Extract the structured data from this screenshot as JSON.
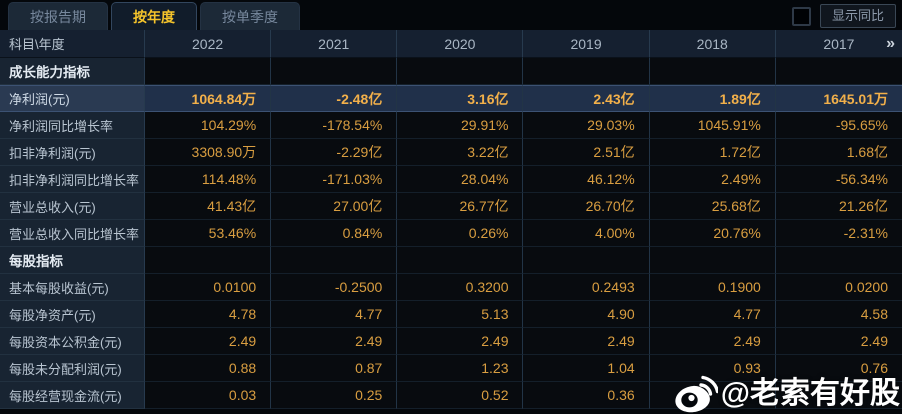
{
  "tab_bar": {
    "tabs": [
      {
        "label": "按报告期",
        "active": false
      },
      {
        "label": "按年度",
        "active": true
      },
      {
        "label": "按单季度",
        "active": false
      }
    ]
  },
  "controls": {
    "checkbox_checked": false,
    "show_yoy_label": "显示同比"
  },
  "table": {
    "corner_label": "科目\\年度",
    "years": [
      "2022",
      "2021",
      "2020",
      "2019",
      "2018",
      "2017"
    ],
    "more_label": "»",
    "rows": [
      {
        "label": "成长能力指标",
        "type": "section",
        "values": [
          "",
          "",
          "",
          "",
          "",
          ""
        ]
      },
      {
        "label": "净利润(元)",
        "type": "highlight",
        "values": [
          "1064.84万",
          "-2.48亿",
          "3.16亿",
          "2.43亿",
          "1.89亿",
          "1645.01万"
        ]
      },
      {
        "label": "净利润同比增长率",
        "type": "data",
        "values": [
          "104.29%",
          "-178.54%",
          "29.91%",
          "29.03%",
          "1045.91%",
          "-95.65%"
        ]
      },
      {
        "label": "扣非净利润(元)",
        "type": "data",
        "values": [
          "3308.90万",
          "-2.29亿",
          "3.22亿",
          "2.51亿",
          "1.72亿",
          "1.68亿"
        ]
      },
      {
        "label": "扣非净利润同比增长率",
        "type": "data",
        "values": [
          "114.48%",
          "-171.03%",
          "28.04%",
          "46.12%",
          "2.49%",
          "-56.34%"
        ]
      },
      {
        "label": "营业总收入(元)",
        "type": "data",
        "values": [
          "41.43亿",
          "27.00亿",
          "26.77亿",
          "26.70亿",
          "25.68亿",
          "21.26亿"
        ]
      },
      {
        "label": "营业总收入同比增长率",
        "type": "data",
        "values": [
          "53.46%",
          "0.84%",
          "0.26%",
          "4.00%",
          "20.76%",
          "-2.31%"
        ]
      },
      {
        "label": "每股指标",
        "type": "section",
        "values": [
          "",
          "",
          "",
          "",
          "",
          ""
        ]
      },
      {
        "label": "基本每股收益(元)",
        "type": "data",
        "values": [
          "0.0100",
          "-0.2500",
          "0.3200",
          "0.2493",
          "0.1900",
          "0.0200"
        ]
      },
      {
        "label": "每股净资产(元)",
        "type": "data",
        "values": [
          "4.78",
          "4.77",
          "5.13",
          "4.90",
          "4.77",
          "4.58"
        ]
      },
      {
        "label": "每股资本公积金(元)",
        "type": "data",
        "values": [
          "2.49",
          "2.49",
          "2.49",
          "2.49",
          "2.49",
          "2.49"
        ]
      },
      {
        "label": "每股未分配利润(元)",
        "type": "data",
        "values": [
          "0.88",
          "0.87",
          "1.23",
          "1.04",
          "0.93",
          "0.76"
        ]
      },
      {
        "label": "每股经营现金流(元)",
        "type": "data",
        "values": [
          "0.03",
          "0.25",
          "0.52",
          "0.36",
          "",
          ""
        ]
      }
    ]
  },
  "watermark": {
    "icon": "weibo-icon",
    "text": "@老索有好股"
  },
  "colors": {
    "accent_gold": "#f5c42b",
    "value_orange": "#d99e41",
    "highlight_value": "#f2b04a",
    "highlight_row_bg": "#20304a",
    "label_col_bg": "#182432",
    "header_bg": "#152030"
  }
}
